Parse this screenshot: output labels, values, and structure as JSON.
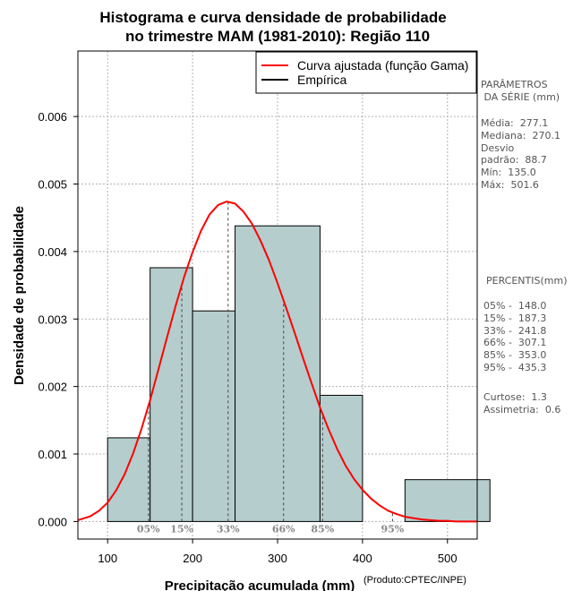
{
  "chart_data": {
    "type": "histogram",
    "title_line1": "Histograma e curva densidade de probabilidade",
    "title_line2": "no trimestre MAM (1981-2010): Região 110",
    "xlabel": "Precipitação acumulada (mm)",
    "ylabel": "Densidade de probabilidade",
    "credit": "(Produto:CPTEC/INPE)",
    "xlim": [
      65,
      535
    ],
    "ylim": [
      -0.00026,
      0.00697
    ],
    "x_ticks": [
      100,
      200,
      300,
      400,
      500
    ],
    "y_ticks": [
      0.0,
      0.001,
      0.002,
      0.003,
      0.004,
      0.005,
      0.006
    ],
    "y_tick_labels": [
      "0.000",
      "0.001",
      "0.002",
      "0.003",
      "0.004",
      "0.005",
      "0.006"
    ],
    "grid": true,
    "bins": [
      {
        "x0": 100,
        "x1": 150,
        "density": 0.00124
      },
      {
        "x0": 150,
        "x1": 200,
        "density": 0.00376
      },
      {
        "x0": 200,
        "x1": 250,
        "density": 0.00312
      },
      {
        "x0": 250,
        "x1": 350,
        "density": 0.00438
      },
      {
        "x0": 350,
        "x1": 400,
        "density": 0.00187
      },
      {
        "x0": 400,
        "x1": 450,
        "density": 0.0
      },
      {
        "x0": 450,
        "x1": 550,
        "density": 0.00062
      }
    ],
    "fitted_curve": {
      "name": "Curva ajustada (função Gama)",
      "color": "#ff0000",
      "x": [
        65,
        80,
        90,
        100,
        110,
        120,
        130,
        140,
        150,
        160,
        170,
        180,
        190,
        200,
        210,
        220,
        230,
        240,
        250,
        260,
        270,
        280,
        290,
        300,
        310,
        320,
        330,
        340,
        350,
        360,
        370,
        380,
        390,
        400,
        410,
        420,
        430,
        440,
        450,
        460,
        470,
        480,
        490,
        500,
        510,
        520,
        535
      ],
      "y": [
        2e-05,
        8e-05,
        0.00016,
        0.00028,
        0.00046,
        0.0007,
        0.00101,
        0.00138,
        0.0018,
        0.00226,
        0.00273,
        0.00319,
        0.00362,
        0.00399,
        0.00431,
        0.00455,
        0.00469,
        0.00474,
        0.00471,
        0.00459,
        0.00441,
        0.00416,
        0.00387,
        0.00353,
        0.00317,
        0.0028,
        0.00242,
        0.00205,
        0.00169,
        0.00137,
        0.00108,
        0.00083,
        0.00063,
        0.00047,
        0.00034,
        0.00024,
        0.00016,
        0.00011,
        7e-05,
        5e-05,
        3e-05,
        2e-05,
        1e-05,
        1e-05,
        0.0,
        0.0,
        0.0
      ]
    },
    "empirical_legend": "Empírica",
    "percentile_markers": [
      {
        "label": "05%",
        "x": 148.0
      },
      {
        "label": "15%",
        "x": 187.3
      },
      {
        "label": "33%",
        "x": 241.8
      },
      {
        "label": "66%",
        "x": 307.1
      },
      {
        "label": "85%",
        "x": 353.0
      },
      {
        "label": "95%",
        "x": 435.3
      }
    ]
  },
  "sidebar": {
    "params_heading": "PARÂMETROS\n DA SÉRIE (mm)",
    "stats": "Média:  277.1\nMediana:  270.1\nDesvio\npadrão:  88.7\nMín:  135.0\nMáx:  501.6",
    "percentiles_heading": "PERCENTIS(mm)",
    "percentiles": "05% -  148.0\n15% -  187.3\n33% -  241.8\n66% -  307.1\n85% -  353.0\n95% -  435.3",
    "extra": "Curtose:  1.3\nAssimetria:  0.6"
  },
  "colors": {
    "bar_fill": "#b5cdcd",
    "curve": "#ff0000",
    "grid": "#b3b3b3",
    "marker_text": "#888888"
  }
}
